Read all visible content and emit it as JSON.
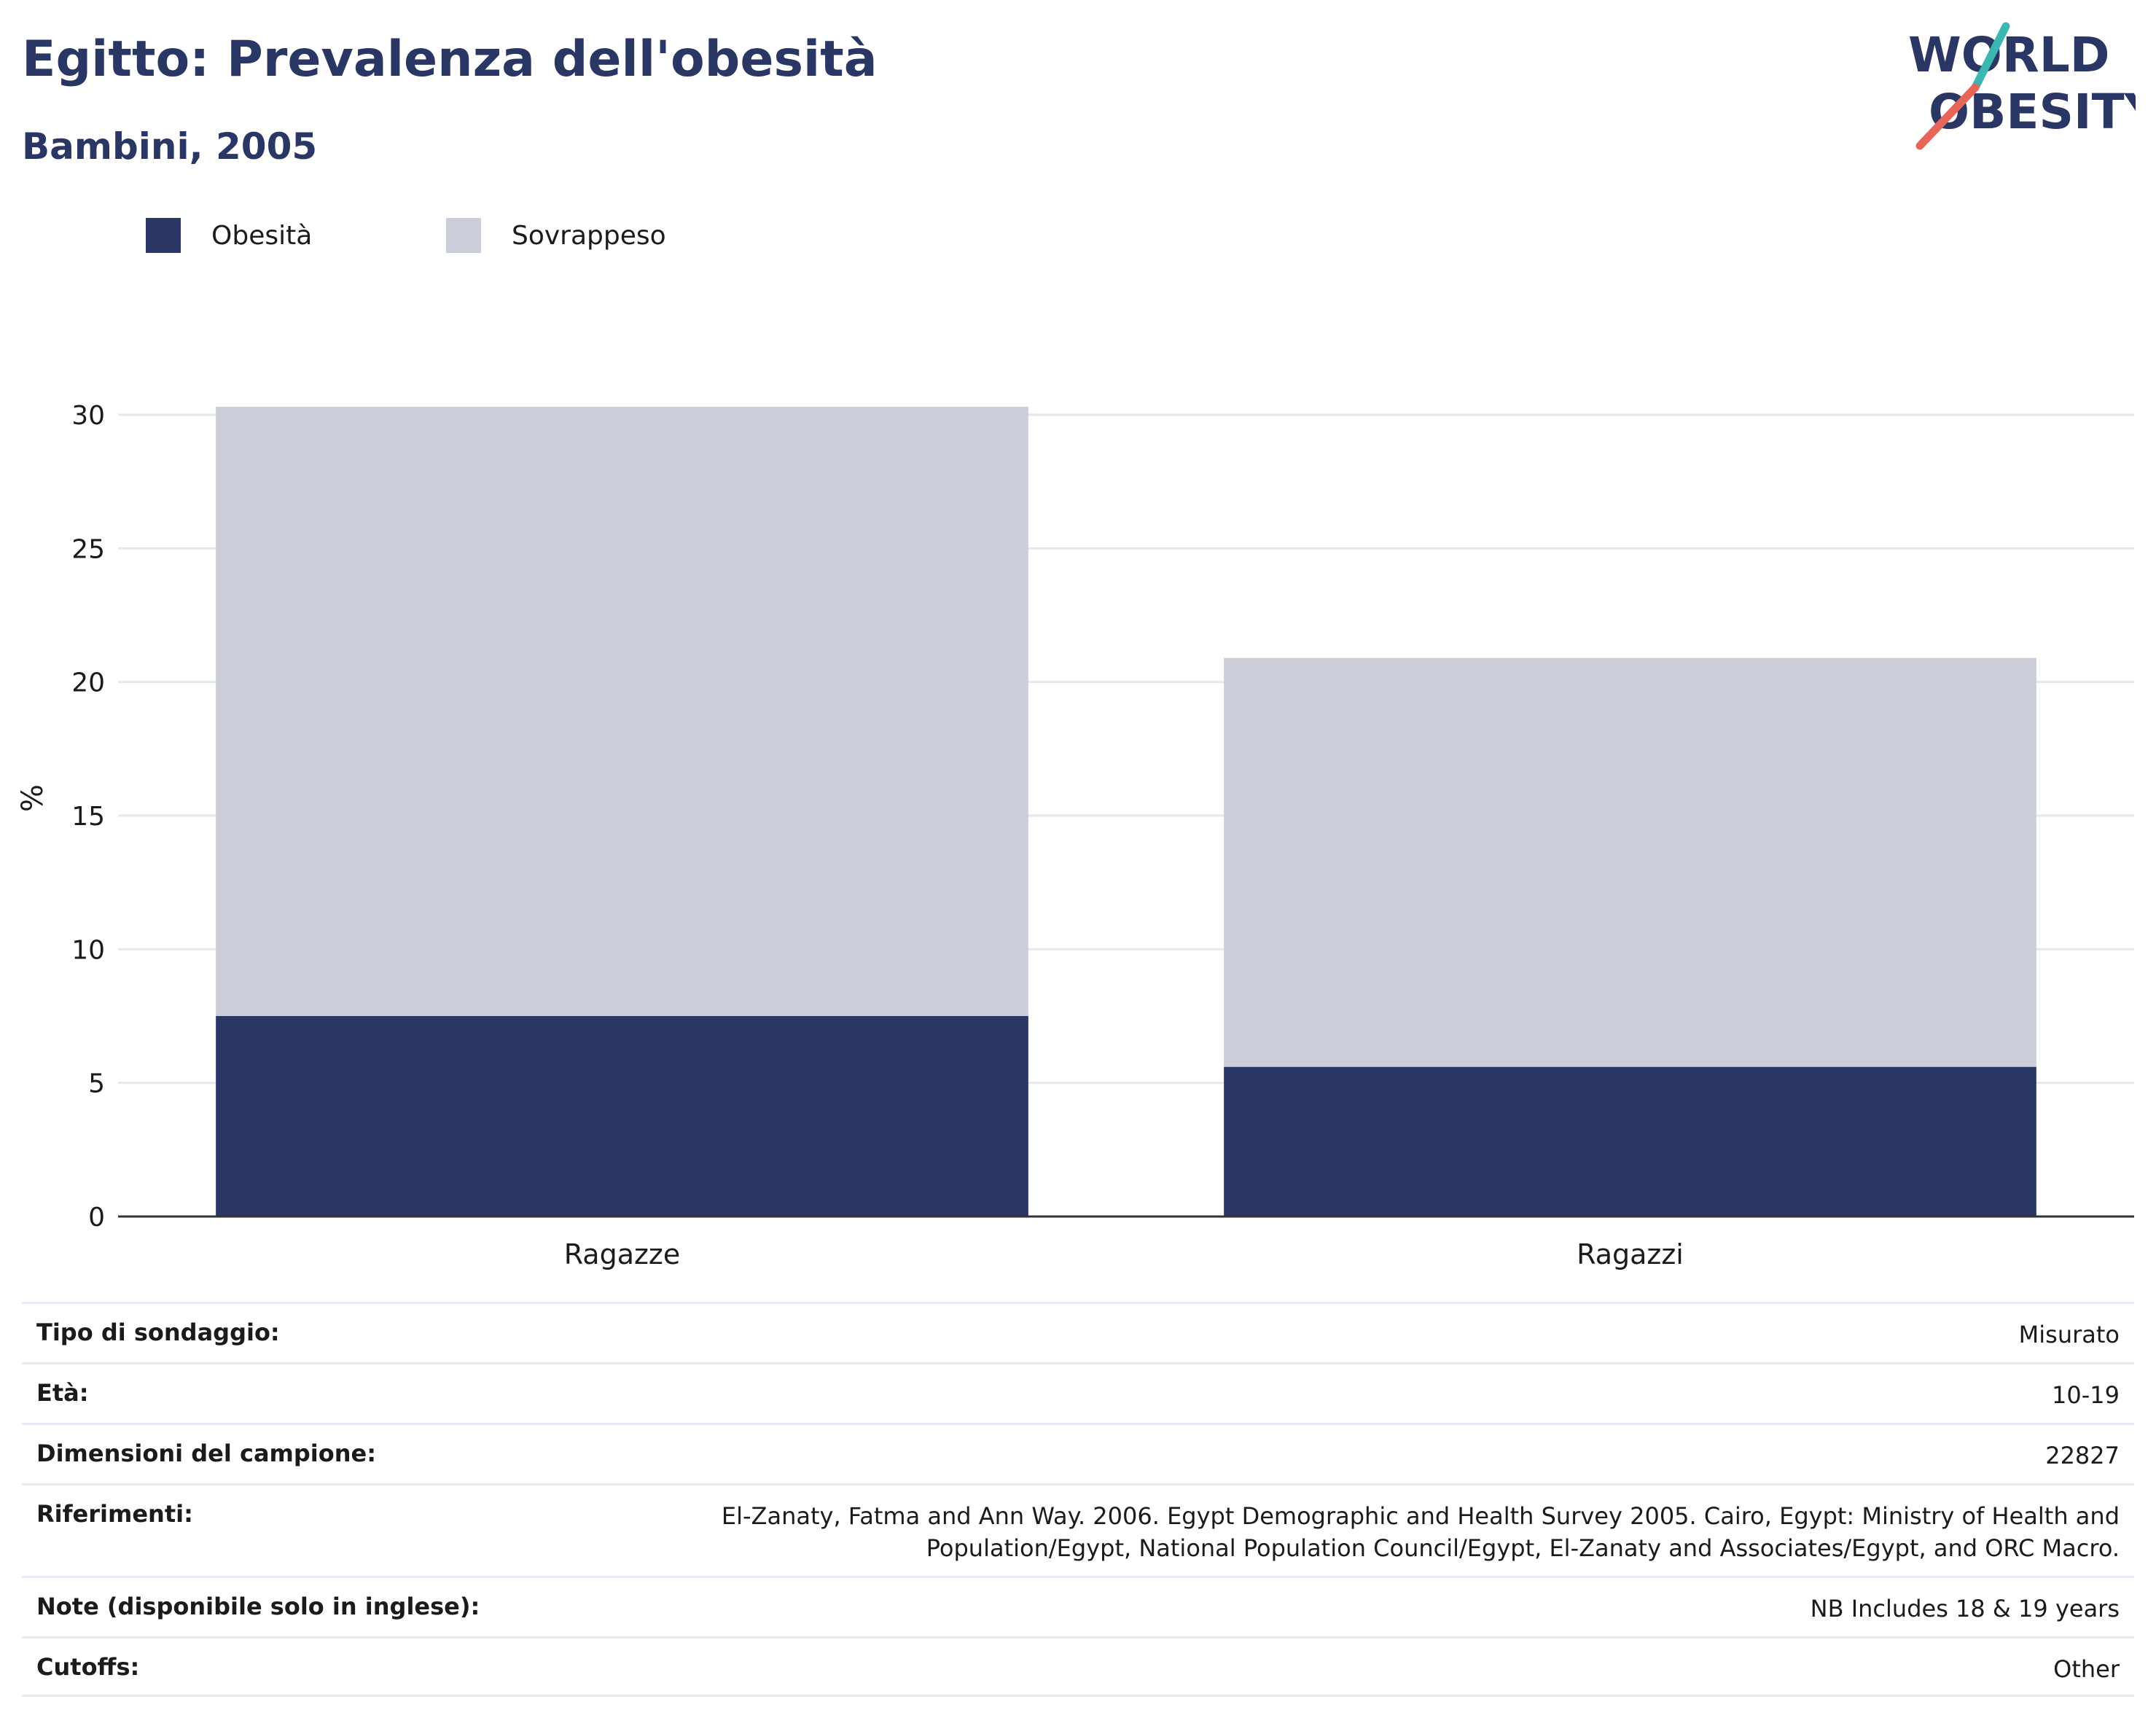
{
  "header": {
    "title": "Egitto: Prevalenza dell'obesità",
    "subtitle": "Bambini, 2005"
  },
  "logo": {
    "line1": "WORLD",
    "line2": "OBESITY"
  },
  "colors": {
    "obesity": "#2a3663",
    "overweight": "#cbcdd8",
    "title": "#2a3663",
    "logo_teal": "#3bb6b0",
    "logo_coral": "#e8655a"
  },
  "legend": [
    {
      "label": "Obesità",
      "color": "#2a3663"
    },
    {
      "label": "Sovrappeso",
      "color": "#cbcdd8"
    }
  ],
  "chart_data": {
    "type": "bar",
    "stacked": true,
    "title": "Egitto: Prevalenza dell'obesità",
    "subtitle": "Bambini, 2005",
    "categories": [
      "Ragazze",
      "Ragazzi"
    ],
    "series": [
      {
        "name": "Obesità",
        "values": [
          7.5,
          5.6
        ],
        "color": "#2a3663"
      },
      {
        "name": "Sovrappeso",
        "values": [
          22.8,
          15.3
        ],
        "color": "#cbcdd8"
      }
    ],
    "ylabel": "%",
    "xlabel": "",
    "ylim": [
      0,
      30
    ],
    "yticks": [
      0,
      5,
      10,
      15,
      20,
      25,
      30
    ],
    "grid": true,
    "legend_position": "top-left"
  },
  "metadata": [
    {
      "key": "Tipo di sondaggio:",
      "value": "Misurato"
    },
    {
      "key": "Età:",
      "value": "10-19"
    },
    {
      "key": "Dimensioni del campione:",
      "value": "22827"
    },
    {
      "key": "Riferimenti:",
      "value": "El-Zanaty, Fatma and Ann Way. 2006. Egypt Demographic and Health Survey 2005. Cairo, Egypt: Ministry of Health and Population/Egypt, National Population Council/Egypt, El-Zanaty and Associates/Egypt, and ORC Macro."
    },
    {
      "key": "Note (disponibile solo in inglese):",
      "value": "NB Includes 18 & 19 years"
    },
    {
      "key": "Cutoffs:",
      "value": "Other"
    }
  ]
}
